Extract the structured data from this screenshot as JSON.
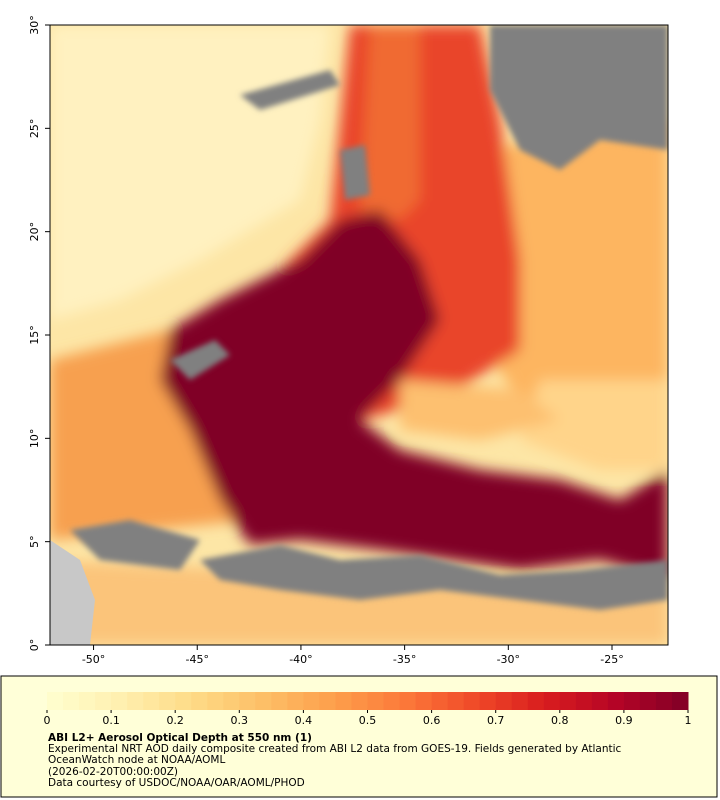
{
  "map": {
    "xlim": [
      -52.1,
      -22.3
    ],
    "ylim": [
      0,
      30
    ],
    "xticks": [
      {
        "value": -50,
        "label": "-50°"
      },
      {
        "value": -45,
        "label": "-45°"
      },
      {
        "value": -40,
        "label": "-40°"
      },
      {
        "value": -35,
        "label": "-35°"
      },
      {
        "value": -30,
        "label": "-30°"
      },
      {
        "value": -25,
        "label": "-25°"
      }
    ],
    "yticks": [
      {
        "value": 0,
        "label": "0°"
      },
      {
        "value": 5,
        "label": "5°"
      },
      {
        "value": 10,
        "label": "10°"
      },
      {
        "value": 15,
        "label": "15°"
      },
      {
        "value": 20,
        "label": "20°"
      },
      {
        "value": 25,
        "label": "25°"
      },
      {
        "value": 30,
        "label": "30°"
      }
    ]
  },
  "colorbar": {
    "range": [
      0,
      1
    ],
    "ticks": [
      0,
      0.1,
      0.2,
      0.3,
      0.4,
      0.5,
      0.6,
      0.7,
      0.8,
      0.9,
      1
    ],
    "colormap": [
      "#ffffd0",
      "#fff0b0",
      "#fedc88",
      "#fdc068",
      "#fda04c",
      "#fc7a3a",
      "#f04a28",
      "#d81c1e",
      "#b40426",
      "#800026"
    ]
  },
  "caption": {
    "title": "ABI L2+ Aerosol Optical Depth at 550 nm (1)",
    "lines": [
      "Experimental NRT AOD daily composite created from ABI L2 data from GOES-19. Fields generated by Atlantic",
      "OceanWatch node at NOAA/AOML",
      "(2026-02-20T00:00:00Z)",
      "Data courtesy of USDOC/NOAA/OAR/AOML/PHOD"
    ]
  }
}
